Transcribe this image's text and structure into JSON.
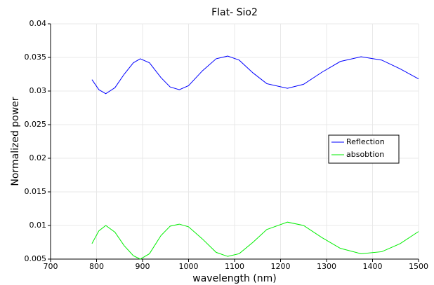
{
  "chart_data": {
    "type": "line",
    "title": "Flat- Sio2",
    "x_label": "wavelength (nm)",
    "y_label": "Normalized power",
    "x": [
      790,
      805,
      820,
      840,
      860,
      880,
      895,
      915,
      940,
      960,
      980,
      1000,
      1030,
      1060,
      1085,
      1110,
      1140,
      1170,
      1215,
      1250,
      1290,
      1330,
      1375,
      1420,
      1460,
      1500
    ],
    "series": [
      {
        "name": "Reflection",
        "color": "#0000ff",
        "values": [
          0.0317,
          0.0302,
          0.0296,
          0.0305,
          0.0325,
          0.0342,
          0.0348,
          0.0342,
          0.032,
          0.0306,
          0.0302,
          0.0308,
          0.033,
          0.0348,
          0.0352,
          0.0346,
          0.0327,
          0.0311,
          0.0304,
          0.031,
          0.0328,
          0.0344,
          0.0351,
          0.0346,
          0.0333,
          0.0318
        ]
      },
      {
        "name": "absobtion",
        "color": "#00ee00",
        "values": [
          0.0073,
          0.0092,
          0.01,
          0.009,
          0.007,
          0.0055,
          0.005,
          0.0058,
          0.0085,
          0.0099,
          0.0102,
          0.0098,
          0.008,
          0.006,
          0.0054,
          0.0058,
          0.0075,
          0.0094,
          0.0105,
          0.01,
          0.0082,
          0.0066,
          0.0058,
          0.0061,
          0.0073,
          0.0091
        ]
      }
    ],
    "xlim": [
      700,
      1500
    ],
    "xticks": [
      700,
      800,
      900,
      1000,
      1100,
      1200,
      1300,
      1400,
      1500
    ],
    "ylim": [
      0.005,
      0.04
    ],
    "yticks": [
      0.005,
      0.01,
      0.015,
      0.02,
      0.025,
      0.03,
      0.035,
      0.04
    ],
    "grid": true,
    "legend": "right"
  }
}
